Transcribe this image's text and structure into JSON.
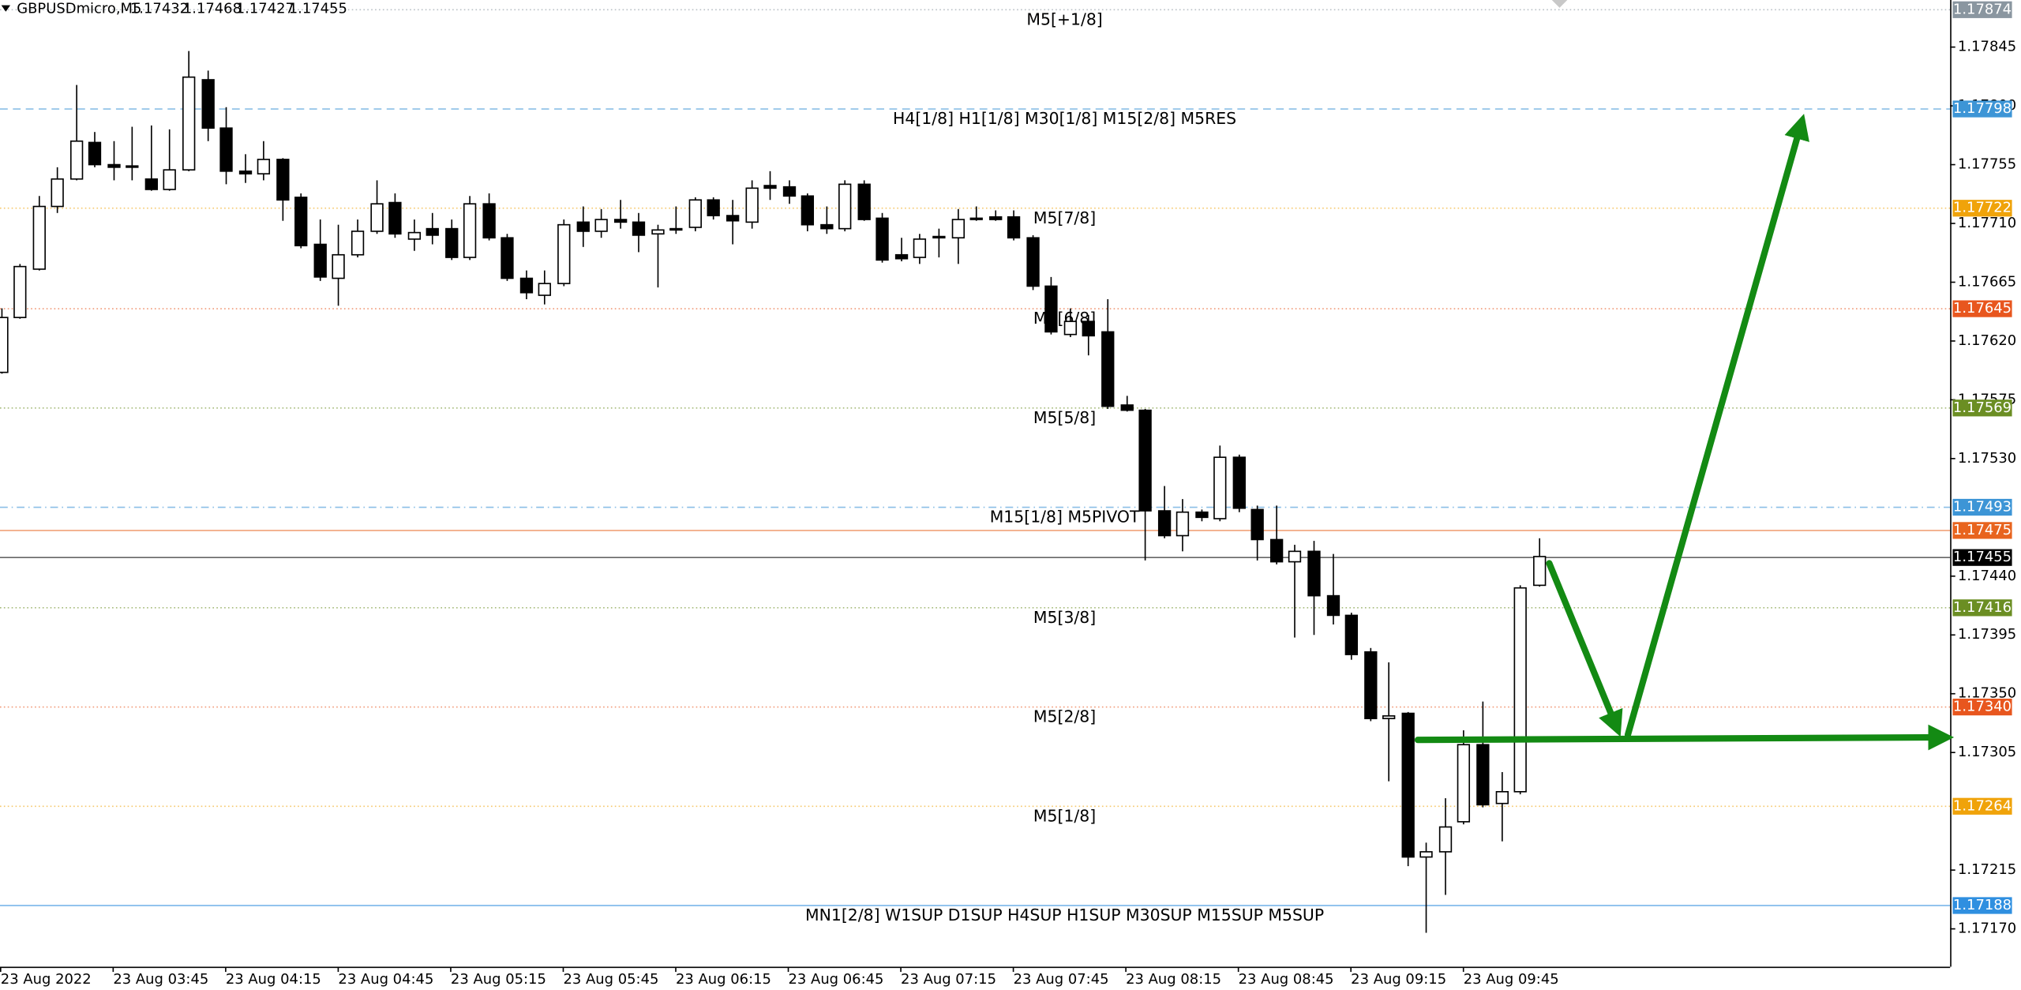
{
  "chart_data": {
    "type": "candlestick",
    "symbol": "GBPUSDmicro,M5",
    "header_ohlc": [
      1.17432,
      1.17468,
      1.17427,
      1.17455
    ],
    "categories": [
      "23 Aug 2022",
      null,
      null,
      null,
      null,
      null,
      "23 Aug 03:45",
      null,
      null,
      null,
      null,
      null,
      "23 Aug 04:15",
      null,
      null,
      null,
      null,
      null,
      "23 Aug 04:45",
      null,
      null,
      null,
      null,
      null,
      "23 Aug 05:15",
      null,
      null,
      null,
      null,
      null,
      "23 Aug 05:45",
      null,
      null,
      null,
      null,
      null,
      "23 Aug 06:15",
      null,
      null,
      null,
      null,
      null,
      "23 Aug 06:45",
      null,
      null,
      null,
      null,
      null,
      "23 Aug 07:15",
      null,
      null,
      null,
      null,
      null,
      "23 Aug 07:45",
      null,
      null,
      null,
      null,
      null,
      "23 Aug 08:15",
      null,
      null,
      null,
      null,
      null,
      "23 Aug 08:45",
      null,
      null,
      null,
      null,
      null,
      "23 Aug 09:15",
      null,
      null,
      null,
      null,
      null,
      "23 Aug 09:45",
      null,
      null,
      null,
      null
    ],
    "open": [
      1.17596,
      1.17638,
      1.17675,
      1.17723,
      1.17744,
      1.17772,
      1.17755,
      1.17754,
      1.17744,
      1.17736,
      1.17751,
      1.1782,
      1.17783,
      1.1775,
      1.17748,
      1.17759,
      1.1773,
      1.17694,
      1.17668,
      1.17686,
      1.17704,
      1.17726,
      1.17698,
      1.17706,
      1.17706,
      1.17684,
      1.17725,
      1.17699,
      1.17668,
      1.17655,
      1.17664,
      1.17711,
      1.17704,
      1.17713,
      1.17711,
      1.17702,
      1.17705,
      1.17707,
      1.17728,
      1.17716,
      1.17711,
      1.17739,
      1.17738,
      1.17731,
      1.17709,
      1.17706,
      1.1774,
      1.17714,
      1.17686,
      1.17684,
      1.17699,
      1.17699,
      1.17713,
      1.17715,
      1.17715,
      1.17699,
      1.17662,
      1.17625,
      1.17635,
      1.17627,
      1.17571,
      1.17567,
      1.1749,
      1.17471,
      1.17489,
      1.17484,
      1.17531,
      1.17491,
      1.17468,
      1.17451,
      1.17459,
      1.17425,
      1.1741,
      1.17382,
      1.17331,
      1.17335,
      1.17225,
      1.17229,
      1.17252,
      1.17311,
      1.17266,
      1.17275,
      1.17433
    ],
    "high": [
      1.17645,
      1.17679,
      1.17731,
      1.17753,
      1.17816,
      1.1778,
      1.17773,
      1.17784,
      1.17785,
      1.17782,
      1.17842,
      1.17827,
      1.17799,
      1.17763,
      1.17773,
      1.1776,
      1.17733,
      1.17713,
      1.17709,
      1.17713,
      1.17743,
      1.17733,
      1.17713,
      1.17718,
      1.17713,
      1.17731,
      1.17733,
      1.17702,
      1.17674,
      1.17674,
      1.17713,
      1.17723,
      1.17721,
      1.17728,
      1.17718,
      1.17709,
      1.17723,
      1.1773,
      1.1773,
      1.17728,
      1.17743,
      1.1775,
      1.17743,
      1.17733,
      1.17723,
      1.17743,
      1.17743,
      1.17718,
      1.17699,
      1.17702,
      1.17706,
      1.17721,
      1.17723,
      1.1772,
      1.1772,
      1.17701,
      1.17669,
      1.17645,
      1.1764,
      1.17652,
      1.17578,
      1.17568,
      1.17509,
      1.17499,
      1.17491,
      1.1754,
      1.17533,
      1.17494,
      1.17494,
      1.17464,
      1.17467,
      1.17457,
      1.17412,
      1.17385,
      1.17374,
      1.17336,
      1.17236,
      1.1727,
      1.17322,
      1.17344,
      1.1729,
      1.17433,
      1.17469
    ],
    "low": [
      1.17595,
      1.17637,
      1.17674,
      1.17718,
      1.17743,
      1.17753,
      1.17743,
      1.17743,
      1.17735,
      1.17735,
      1.1775,
      1.17773,
      1.1774,
      1.17741,
      1.17743,
      1.17712,
      1.17691,
      1.17666,
      1.17647,
      1.17684,
      1.17702,
      1.17699,
      1.17689,
      1.17694,
      1.17682,
      1.17682,
      1.17697,
      1.17666,
      1.17652,
      1.17648,
      1.17662,
      1.17692,
      1.17699,
      1.17706,
      1.17688,
      1.17661,
      1.17702,
      1.17704,
      1.17713,
      1.17694,
      1.17706,
      1.17728,
      1.17725,
      1.17704,
      1.17702,
      1.17704,
      1.17712,
      1.1768,
      1.17681,
      1.17679,
      1.17684,
      1.17679,
      1.17712,
      1.17712,
      1.17697,
      1.17659,
      1.17625,
      1.17623,
      1.17609,
      1.17568,
      1.17566,
      1.17452,
      1.17469,
      1.17459,
      1.17482,
      1.17482,
      1.17489,
      1.17452,
      1.17449,
      1.17393,
      1.17395,
      1.17403,
      1.17376,
      1.17329,
      1.17283,
      1.17218,
      1.17167,
      1.17196,
      1.1725,
      1.17263,
      1.17237,
      1.17273,
      1.17432
    ],
    "close": [
      1.17638,
      1.17677,
      1.17723,
      1.17744,
      1.17773,
      1.17755,
      1.17753,
      1.17753,
      1.17736,
      1.17751,
      1.17822,
      1.17783,
      1.1775,
      1.17748,
      1.17759,
      1.17728,
      1.17693,
      1.17669,
      1.17686,
      1.17704,
      1.17725,
      1.17702,
      1.17703,
      1.17701,
      1.17684,
      1.17725,
      1.17699,
      1.17668,
      1.17657,
      1.17664,
      1.17709,
      1.17704,
      1.17713,
      1.17711,
      1.17701,
      1.17705,
      1.17706,
      1.17728,
      1.17716,
      1.17712,
      1.17737,
      1.17737,
      1.17731,
      1.17709,
      1.17706,
      1.1774,
      1.17713,
      1.17682,
      1.17683,
      1.17698,
      1.177,
      1.17713,
      1.17714,
      1.17713,
      1.17699,
      1.17662,
      1.17627,
      1.17635,
      1.17624,
      1.1757,
      1.17567,
      1.1749,
      1.17471,
      1.17489,
      1.17485,
      1.17531,
      1.17492,
      1.17468,
      1.17451,
      1.17459,
      1.17425,
      1.1741,
      1.1738,
      1.17331,
      1.17333,
      1.17225,
      1.17229,
      1.17248,
      1.17311,
      1.17265,
      1.17275,
      1.17431,
      1.17455
    ],
    "ylim": [
      1.17141,
      1.17881
    ],
    "yticks": [
      1.17845,
      {
        "value": 1.178,
        "label": "1.17800"
      },
      1.17755,
      {
        "value": 1.1771,
        "label": "1.17710"
      },
      1.17665,
      {
        "value": 1.1762,
        "label": "1.17620"
      },
      1.17575,
      {
        "value": 1.1753,
        "label": "1.17530"
      },
      {
        "value": 1.1744,
        "label": "1.17440"
      },
      1.17395,
      {
        "value": 1.1735,
        "label": "1.17350"
      },
      1.17305,
      1.17215,
      {
        "value": 1.1717,
        "label": "1.17170"
      }
    ],
    "levels": [
      {
        "value": 1.17874,
        "label": "M5[+1/8]",
        "color": "#8a96a0",
        "style": "dotted"
      },
      {
        "value": 1.17798,
        "label": "H4[1/8] H1[1/8] M30[1/8] M15[2/8] M5RES",
        "color": "#3d95d6",
        "style": "dashed"
      },
      {
        "value": 1.17722,
        "label": "M5[7/8]",
        "color": "#f0a30a",
        "style": "dotted"
      },
      {
        "value": 1.17645,
        "label": "M5[6/8]",
        "color": "#e8561e",
        "style": "dotted"
      },
      {
        "value": 1.17569,
        "label": "M5[5/8]",
        "color": "#6b8e23",
        "style": "dotted"
      },
      {
        "value": 1.17493,
        "label": "M15[1/8] M5PIVOT",
        "color": "#3d95d6",
        "style": "dashdot"
      },
      {
        "value": 1.17475,
        "color": "#e8641e",
        "style": "solid"
      },
      {
        "value": 1.17455,
        "color": "#000000",
        "style": "solid"
      },
      {
        "value": 1.17416,
        "label": "M5[3/8]",
        "color": "#6b8e23",
        "style": "dotted"
      },
      {
        "value": 1.1734,
        "value_label": "1.17340",
        "label": "M5[2/8]",
        "color": "#e8561e",
        "style": "dotted"
      },
      {
        "value": 1.17264,
        "label": "M5[1/8]",
        "color": "#f0a30a",
        "style": "dotted"
      },
      {
        "value": 1.17188,
        "label": "MN1[2/8] W1SUP D1SUP H4SUP H1SUP M30SUP M15SUP M5SUP",
        "color": "#2f8fe0",
        "style": "solid"
      }
    ]
  }
}
